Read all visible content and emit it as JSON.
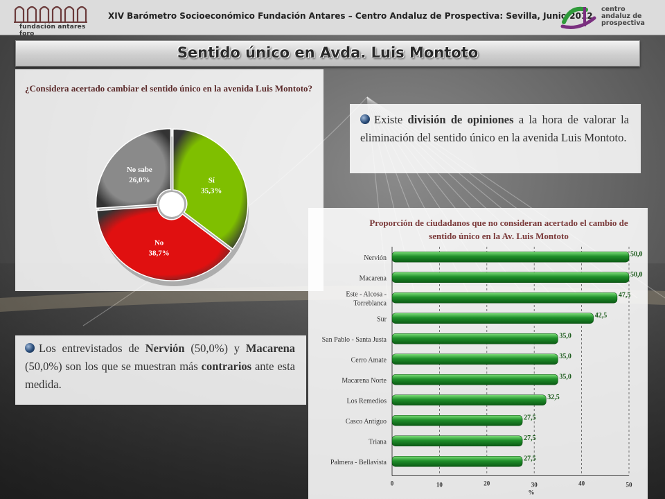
{
  "header": {
    "title": "XIV Barómetro Socioeconómico Fundación Antares – Centro Andaluz de Prospectiva: Sevilla, Junio 2012",
    "logo_left_text": "fundación antares foro",
    "logo_right_lines": [
      "centro",
      "andaluz de",
      "prospectiva"
    ]
  },
  "slide_title": "Sentido único en Avda. Luis Montoto",
  "question": "¿Considera acertado cambiar el sentido único en la avenida Luis Montoto?",
  "para_right": {
    "pre": "Existe ",
    "bold": "división de opiniones",
    "post": " a la hora de valorar la eliminación del sentido único en la avenida Luis Montoto."
  },
  "para_left": {
    "t1": "Los entrevistados de ",
    "b1": "Nervión",
    "t2": " (50,0%) y ",
    "b2": "Macarena",
    "t3": " (50,0%) son los que se muestran más ",
    "b3": "contrarios",
    "t4": " ante esta medida."
  },
  "chart_data": [
    {
      "type": "pie",
      "labels": [
        "Sí",
        "No",
        "No sabe"
      ],
      "display_values": [
        "35,3%",
        "38,7%",
        "26,0%"
      ],
      "values": [
        35.3,
        38.7,
        26.0
      ],
      "colors": [
        "#7fbf00",
        "#e01010",
        "#8a8a8a"
      ]
    },
    {
      "type": "bar",
      "orientation": "horizontal",
      "title": "Proporción de ciudadanos que no consideran acertado el cambio de sentido único en la Av. Luis Montoto",
      "categories": [
        "Nervión",
        "Macarena",
        "Este - Alcosa - Torreblanca",
        "Sur",
        "San Pablo - Santa Justa",
        "Cerro Amate",
        "Macarena Norte",
        "Los Remedios",
        "Casco Antiguo",
        "Triana",
        "Palmera - Bellavista"
      ],
      "category_lines": [
        [
          "Nervión"
        ],
        [
          "Macarena"
        ],
        [
          "Este - Alcosa -",
          "Torreblanca"
        ],
        [
          "Sur"
        ],
        [
          "San Pablo - Santa Justa"
        ],
        [
          "Cerro Amate"
        ],
        [
          "Macarena Norte"
        ],
        [
          "Los Remedios"
        ],
        [
          "Casco Antiguo"
        ],
        [
          "Triana"
        ],
        [
          "Palmera - Bellavista"
        ]
      ],
      "values": [
        50.0,
        50.0,
        47.5,
        42.5,
        35.0,
        35.0,
        35.0,
        32.5,
        27.5,
        27.5,
        27.5
      ],
      "value_labels": [
        "50,0",
        "50,0",
        "47,5",
        "42,5",
        "35,0",
        "35,0",
        "35,0",
        "32,5",
        "27,5",
        "27,5",
        "27,5"
      ],
      "xlabel": "%",
      "xticks": [
        "0",
        "10",
        "20",
        "30",
        "40",
        "50"
      ],
      "xlim": [
        0,
        50
      ],
      "grid": "vertical dashed",
      "bar_color": "#1f8f2a"
    }
  ]
}
